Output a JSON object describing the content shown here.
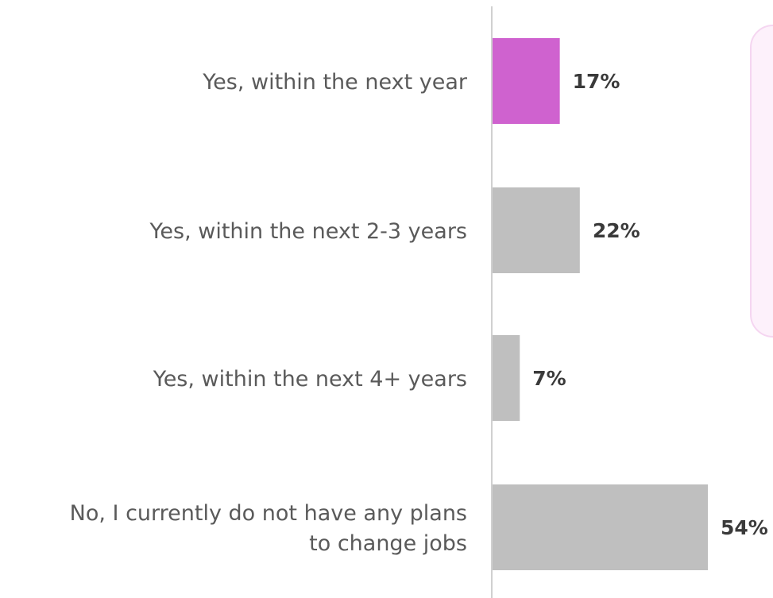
{
  "chart_data": {
    "type": "bar",
    "orientation": "horizontal",
    "categories": [
      [
        "Yes, within the next year"
      ],
      [
        "Yes, within the next 2-3 years"
      ],
      [
        "Yes, within the next 4+ years"
      ],
      [
        "No, I currently do not have any plans",
        "to change jobs"
      ]
    ],
    "values": [
      17,
      22,
      7,
      54
    ],
    "value_labels": [
      "17%",
      "22%",
      "7%",
      "54%"
    ],
    "unit": "%",
    "xlim": [
      0,
      54
    ],
    "grid": false,
    "colors": {
      "highlight": "#cf62cf",
      "default": "#bfbfbf",
      "axis": "#d0d0d0",
      "panel": "#fdf1fb",
      "panel_border": "#f5d6f1"
    },
    "highlight_index": 0
  }
}
